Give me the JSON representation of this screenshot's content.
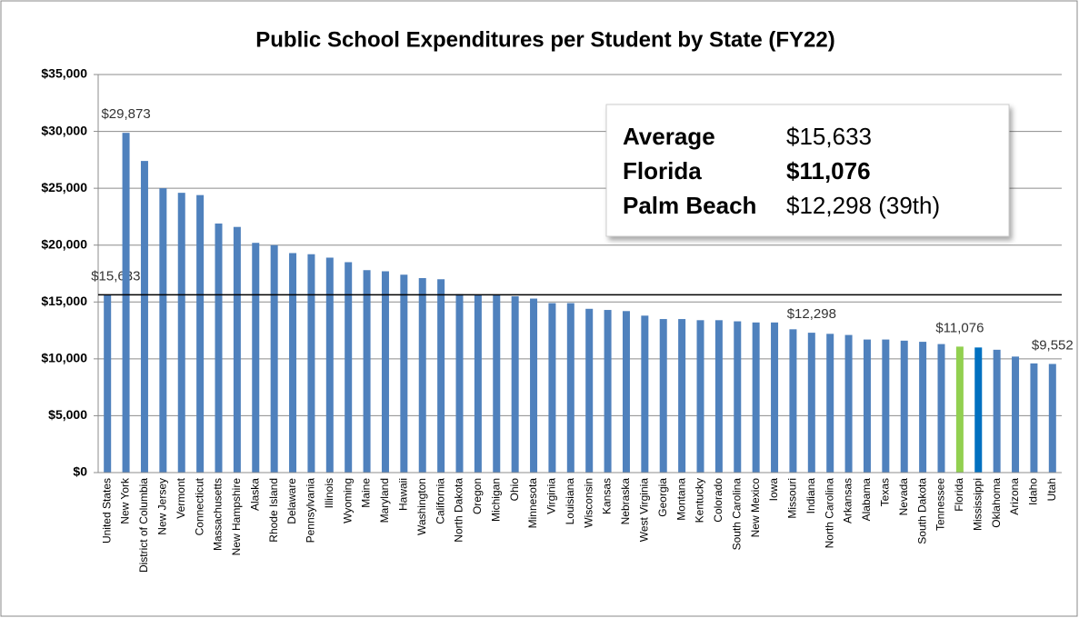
{
  "chart_data": {
    "type": "bar",
    "title": "Public School Expenditures per Student by State (FY22)",
    "categories": [
      "United States",
      "New York",
      "District of Columbia",
      "New Jersey",
      "Vermont",
      "Connecticut",
      "Massachusetts",
      "New Hampshire",
      "Alaska",
      "Rhode Island",
      "Delaware",
      "Pennsylvania",
      "Illinois",
      "Wyoming",
      "Maine",
      "Maryland",
      "Hawaii",
      "Washington",
      "California",
      "North Dakota",
      "Oregon",
      "Michigan",
      "Ohio",
      "Minnesota",
      "Virginia",
      "Louisiana",
      "Wisconsin",
      "Kansas",
      "Nebraska",
      "West Virginia",
      "Georgia",
      "Montana",
      "Kentucky",
      "Colorado",
      "South Carolina",
      "New Mexico",
      "Iowa",
      "Missouri",
      "Indiana",
      "North Carolina",
      "Arkansas",
      "Alabama",
      "Texas",
      "Nevada",
      "South Dakota",
      "Tennessee",
      "Florida",
      "Mississippi",
      "Oklahoma",
      "Arizona",
      "Idaho",
      "Utah"
    ],
    "values": [
      15633,
      29873,
      27400,
      25000,
      24600,
      24400,
      21900,
      21600,
      20200,
      20000,
      19300,
      19200,
      18900,
      18500,
      17800,
      17700,
      17400,
      17100,
      17000,
      15700,
      15650,
      15600,
      15500,
      15300,
      14900,
      14900,
      14400,
      14300,
      14200,
      13800,
      13500,
      13500,
      13400,
      13400,
      13300,
      13200,
      13200,
      12600,
      12298,
      12200,
      12100,
      11700,
      11700,
      11600,
      11500,
      11300,
      11076,
      11000,
      10800,
      10200,
      9600,
      9552
    ],
    "value_labels": [
      "$15,633",
      "$29,873",
      null,
      null,
      null,
      null,
      null,
      null,
      null,
      null,
      null,
      null,
      null,
      null,
      null,
      null,
      null,
      null,
      null,
      null,
      null,
      null,
      null,
      null,
      null,
      null,
      null,
      null,
      null,
      null,
      null,
      null,
      null,
      null,
      null,
      null,
      null,
      null,
      "$12,298",
      null,
      null,
      null,
      null,
      null,
      null,
      null,
      "$11,076",
      null,
      null,
      null,
      null,
      "$9,552"
    ],
    "color": "#4f81bd",
    "colors": [
      "#4f81bd",
      "#4f81bd",
      "#4f81bd",
      "#4f81bd",
      "#4f81bd",
      "#4f81bd",
      "#4f81bd",
      "#4f81bd",
      "#4f81bd",
      "#4f81bd",
      "#4f81bd",
      "#4f81bd",
      "#4f81bd",
      "#4f81bd",
      "#4f81bd",
      "#4f81bd",
      "#4f81bd",
      "#4f81bd",
      "#4f81bd",
      "#4f81bd",
      "#4f81bd",
      "#4f81bd",
      "#4f81bd",
      "#4f81bd",
      "#4f81bd",
      "#4f81bd",
      "#4f81bd",
      "#4f81bd",
      "#4f81bd",
      "#4f81bd",
      "#4f81bd",
      "#4f81bd",
      "#4f81bd",
      "#4f81bd",
      "#4f81bd",
      "#4f81bd",
      "#4f81bd",
      "#4f81bd",
      "#4f81bd",
      "#4f81bd",
      "#4f81bd",
      "#4f81bd",
      "#4f81bd",
      "#4f81bd",
      "#4f81bd",
      "#4f81bd",
      "#92d050",
      "#0070c0",
      "#4f81bd",
      "#4f81bd",
      "#4f81bd",
      "#4f81bd"
    ],
    "reference_line": 15633,
    "ylim": [
      0,
      35000
    ],
    "yticks": [
      {
        "value": 0,
        "label": "$0"
      },
      {
        "value": 5000,
        "label": "$5,000"
      },
      {
        "value": 10000,
        "label": "$10,000"
      },
      {
        "value": 15000,
        "label": "$15,000"
      },
      {
        "value": 20000,
        "label": "$20,000"
      },
      {
        "value": 25000,
        "label": "$25,000"
      },
      {
        "value": 30000,
        "label": "$30,000"
      },
      {
        "value": 35000,
        "label": "$35,000"
      }
    ],
    "grid": true,
    "annotation_box": [
      {
        "label": "Average",
        "value": "$15,633"
      },
      {
        "label": "Florida",
        "value": "$11,076"
      },
      {
        "label": "Palm Beach",
        "value": "$12,298 (39th)"
      }
    ]
  }
}
